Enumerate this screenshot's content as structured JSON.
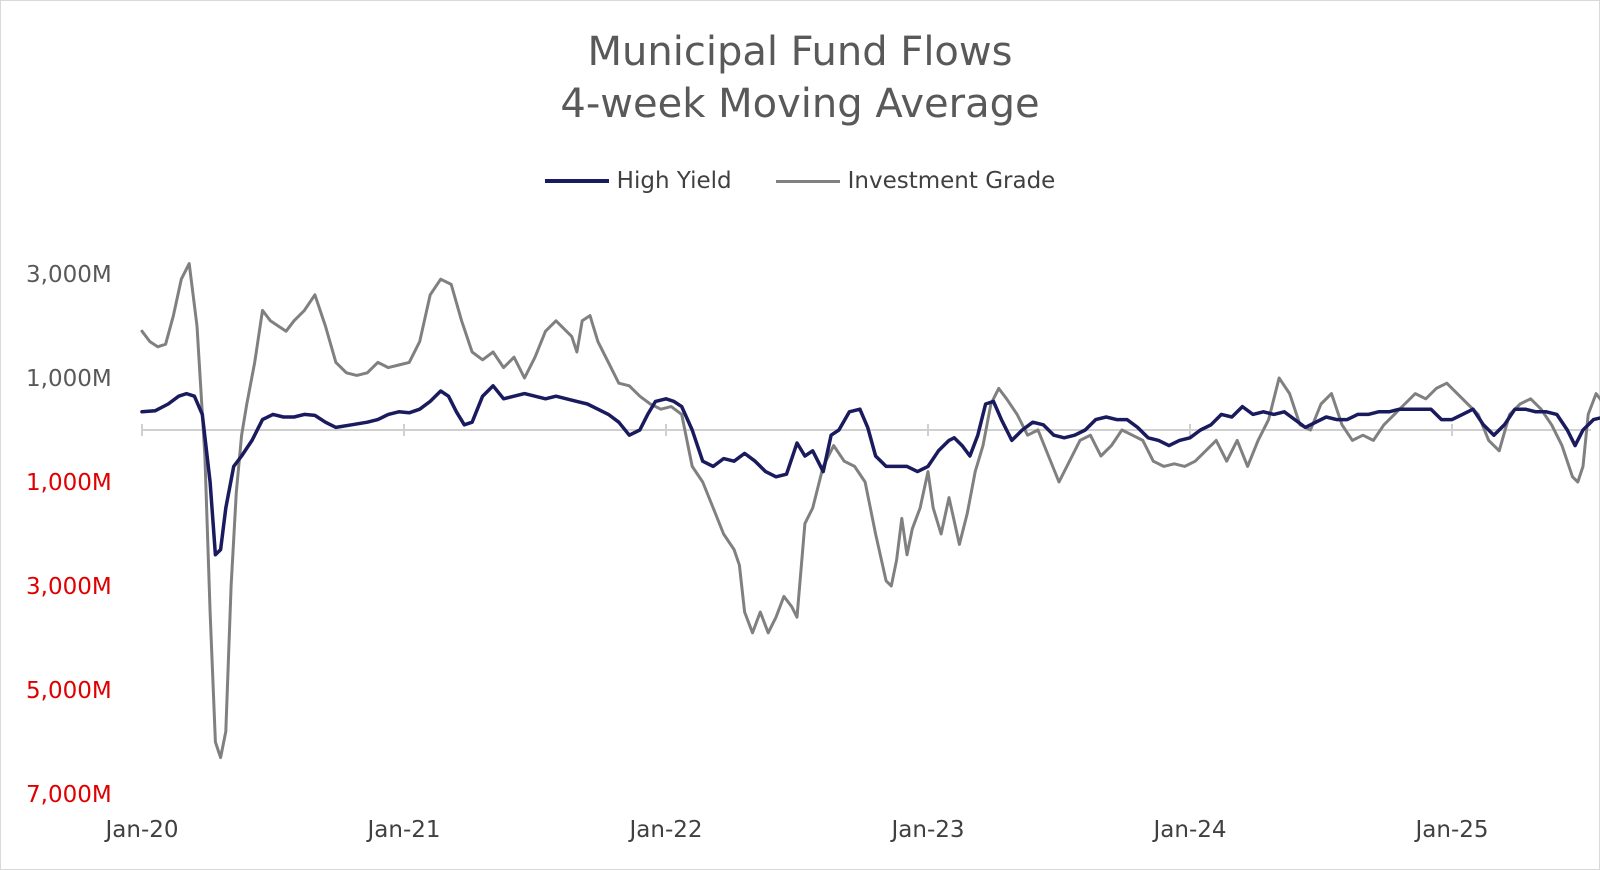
{
  "chart_data": {
    "type": "line",
    "title": "Municipal Fund Flows",
    "subtitle": "4-week Moving Average",
    "xlabel": "",
    "ylabel": "",
    "xlim": [
      0,
      5.5
    ],
    "ylim": [
      -7000,
      3200
    ],
    "grid": false,
    "legend_position": "top-center",
    "x_ticks": [
      "Jan-20",
      "Jan-21",
      "Jan-22",
      "Jan-23",
      "Jan-24",
      "Jan-25"
    ],
    "y_ticks": [
      {
        "value": 3000,
        "label": "3,000M",
        "color": "#595959"
      },
      {
        "value": 1000,
        "label": "1,000M",
        "color": "#595959"
      },
      {
        "value": -1000,
        "label": "1,000M",
        "color": "#e00000"
      },
      {
        "value": -3000,
        "label": "3,000M",
        "color": "#e00000"
      },
      {
        "value": -5000,
        "label": "5,000M",
        "color": "#e00000"
      },
      {
        "value": -7000,
        "label": "7,000M",
        "color": "#e00000"
      }
    ],
    "series": [
      {
        "name": "High Yield",
        "color": "#1a1a5e",
        "points": [
          [
            0.0,
            350
          ],
          [
            0.05,
            370
          ],
          [
            0.1,
            500
          ],
          [
            0.14,
            650
          ],
          [
            0.17,
            700
          ],
          [
            0.2,
            650
          ],
          [
            0.23,
            300
          ],
          [
            0.26,
            -1000
          ],
          [
            0.28,
            -2400
          ],
          [
            0.3,
            -2300
          ],
          [
            0.32,
            -1500
          ],
          [
            0.35,
            -700
          ],
          [
            0.38,
            -500
          ],
          [
            0.42,
            -200
          ],
          [
            0.46,
            200
          ],
          [
            0.5,
            300
          ],
          [
            0.54,
            250
          ],
          [
            0.58,
            250
          ],
          [
            0.62,
            300
          ],
          [
            0.66,
            280
          ],
          [
            0.7,
            150
          ],
          [
            0.74,
            50
          ],
          [
            0.8,
            100
          ],
          [
            0.86,
            150
          ],
          [
            0.9,
            200
          ],
          [
            0.94,
            300
          ],
          [
            0.98,
            350
          ],
          [
            1.02,
            330
          ],
          [
            1.06,
            400
          ],
          [
            1.1,
            550
          ],
          [
            1.14,
            750
          ],
          [
            1.17,
            650
          ],
          [
            1.2,
            350
          ],
          [
            1.23,
            100
          ],
          [
            1.26,
            150
          ],
          [
            1.3,
            650
          ],
          [
            1.34,
            850
          ],
          [
            1.38,
            600
          ],
          [
            1.42,
            650
          ],
          [
            1.46,
            700
          ],
          [
            1.5,
            650
          ],
          [
            1.54,
            600
          ],
          [
            1.58,
            650
          ],
          [
            1.62,
            600
          ],
          [
            1.66,
            550
          ],
          [
            1.7,
            500
          ],
          [
            1.74,
            400
          ],
          [
            1.78,
            300
          ],
          [
            1.82,
            150
          ],
          [
            1.86,
            -100
          ],
          [
            1.9,
            0
          ],
          [
            1.93,
            300
          ],
          [
            1.96,
            550
          ],
          [
            2.0,
            600
          ],
          [
            2.03,
            550
          ],
          [
            2.06,
            450
          ],
          [
            2.1,
            0
          ],
          [
            2.14,
            -600
          ],
          [
            2.18,
            -700
          ],
          [
            2.22,
            -550
          ],
          [
            2.26,
            -600
          ],
          [
            2.3,
            -450
          ],
          [
            2.34,
            -600
          ],
          [
            2.38,
            -800
          ],
          [
            2.42,
            -900
          ],
          [
            2.46,
            -850
          ],
          [
            2.5,
            -250
          ],
          [
            2.53,
            -500
          ],
          [
            2.56,
            -400
          ],
          [
            2.6,
            -800
          ],
          [
            2.63,
            -100
          ],
          [
            2.66,
            0
          ],
          [
            2.7,
            350
          ],
          [
            2.74,
            400
          ],
          [
            2.77,
            50
          ],
          [
            2.8,
            -500
          ],
          [
            2.84,
            -700
          ],
          [
            2.88,
            -700
          ],
          [
            2.92,
            -700
          ],
          [
            2.96,
            -800
          ],
          [
            3.0,
            -700
          ],
          [
            3.04,
            -400
          ],
          [
            3.08,
            -200
          ],
          [
            3.1,
            -150
          ],
          [
            3.13,
            -300
          ],
          [
            3.16,
            -500
          ],
          [
            3.19,
            -100
          ],
          [
            3.22,
            500
          ],
          [
            3.25,
            550
          ],
          [
            3.28,
            200
          ],
          [
            3.32,
            -200
          ],
          [
            3.36,
            0
          ],
          [
            3.4,
            150
          ],
          [
            3.44,
            100
          ],
          [
            3.48,
            -100
          ],
          [
            3.52,
            -150
          ],
          [
            3.56,
            -100
          ],
          [
            3.6,
            0
          ],
          [
            3.64,
            200
          ],
          [
            3.68,
            250
          ],
          [
            3.72,
            200
          ],
          [
            3.76,
            200
          ],
          [
            3.8,
            50
          ],
          [
            3.84,
            -150
          ],
          [
            3.88,
            -200
          ],
          [
            3.92,
            -300
          ],
          [
            3.96,
            -200
          ],
          [
            4.0,
            -150
          ],
          [
            4.04,
            0
          ],
          [
            4.08,
            100
          ],
          [
            4.12,
            300
          ],
          [
            4.16,
            250
          ],
          [
            4.2,
            450
          ],
          [
            4.24,
            300
          ],
          [
            4.28,
            350
          ],
          [
            4.32,
            300
          ],
          [
            4.36,
            350
          ],
          [
            4.4,
            200
          ],
          [
            4.44,
            50
          ],
          [
            4.48,
            150
          ],
          [
            4.52,
            250
          ],
          [
            4.56,
            200
          ],
          [
            4.6,
            200
          ],
          [
            4.64,
            300
          ],
          [
            4.68,
            300
          ],
          [
            4.72,
            350
          ],
          [
            4.76,
            350
          ],
          [
            4.8,
            400
          ],
          [
            4.84,
            400
          ],
          [
            4.88,
            400
          ],
          [
            4.92,
            400
          ],
          [
            4.96,
            200
          ],
          [
            5.0,
            200
          ],
          [
            5.04,
            300
          ],
          [
            5.08,
            400
          ],
          [
            5.12,
            100
          ],
          [
            5.16,
            -100
          ],
          [
            5.2,
            100
          ],
          [
            5.24,
            400
          ],
          [
            5.28,
            400
          ],
          [
            5.32,
            350
          ],
          [
            5.36,
            350
          ],
          [
            5.4,
            300
          ],
          [
            5.44,
            0
          ],
          [
            5.47,
            -300
          ],
          [
            5.5,
            0
          ],
          [
            5.54,
            200
          ],
          [
            5.58,
            250
          ]
        ]
      },
      {
        "name": "Investment Grade",
        "color": "#808080",
        "points": [
          [
            0.0,
            1900
          ],
          [
            0.03,
            1700
          ],
          [
            0.06,
            1600
          ],
          [
            0.09,
            1650
          ],
          [
            0.12,
            2200
          ],
          [
            0.15,
            2900
          ],
          [
            0.18,
            3200
          ],
          [
            0.21,
            2000
          ],
          [
            0.24,
            -500
          ],
          [
            0.26,
            -3500
          ],
          [
            0.28,
            -6000
          ],
          [
            0.3,
            -6300
          ],
          [
            0.32,
            -5800
          ],
          [
            0.34,
            -3000
          ],
          [
            0.36,
            -1200
          ],
          [
            0.38,
            -100
          ],
          [
            0.4,
            500
          ],
          [
            0.43,
            1300
          ],
          [
            0.46,
            2300
          ],
          [
            0.49,
            2100
          ],
          [
            0.52,
            2000
          ],
          [
            0.55,
            1900
          ],
          [
            0.58,
            2100
          ],
          [
            0.62,
            2300
          ],
          [
            0.66,
            2600
          ],
          [
            0.7,
            2000
          ],
          [
            0.74,
            1300
          ],
          [
            0.78,
            1100
          ],
          [
            0.82,
            1050
          ],
          [
            0.86,
            1100
          ],
          [
            0.9,
            1300
          ],
          [
            0.94,
            1200
          ],
          [
            0.98,
            1250
          ],
          [
            1.02,
            1300
          ],
          [
            1.06,
            1700
          ],
          [
            1.1,
            2600
          ],
          [
            1.14,
            2900
          ],
          [
            1.18,
            2800
          ],
          [
            1.22,
            2100
          ],
          [
            1.26,
            1500
          ],
          [
            1.3,
            1350
          ],
          [
            1.34,
            1500
          ],
          [
            1.38,
            1200
          ],
          [
            1.42,
            1400
          ],
          [
            1.46,
            1000
          ],
          [
            1.5,
            1400
          ],
          [
            1.54,
            1900
          ],
          [
            1.58,
            2100
          ],
          [
            1.62,
            1900
          ],
          [
            1.64,
            1800
          ],
          [
            1.66,
            1500
          ],
          [
            1.68,
            2100
          ],
          [
            1.71,
            2200
          ],
          [
            1.74,
            1700
          ],
          [
            1.78,
            1300
          ],
          [
            1.82,
            900
          ],
          [
            1.86,
            850
          ],
          [
            1.9,
            650
          ],
          [
            1.94,
            500
          ],
          [
            1.98,
            400
          ],
          [
            2.02,
            450
          ],
          [
            2.06,
            300
          ],
          [
            2.1,
            -700
          ],
          [
            2.14,
            -1000
          ],
          [
            2.18,
            -1500
          ],
          [
            2.22,
            -2000
          ],
          [
            2.26,
            -2300
          ],
          [
            2.28,
            -2600
          ],
          [
            2.3,
            -3500
          ],
          [
            2.33,
            -3900
          ],
          [
            2.36,
            -3500
          ],
          [
            2.39,
            -3900
          ],
          [
            2.42,
            -3600
          ],
          [
            2.45,
            -3200
          ],
          [
            2.48,
            -3400
          ],
          [
            2.5,
            -3600
          ],
          [
            2.53,
            -1800
          ],
          [
            2.56,
            -1500
          ],
          [
            2.6,
            -700
          ],
          [
            2.64,
            -300
          ],
          [
            2.68,
            -600
          ],
          [
            2.72,
            -700
          ],
          [
            2.76,
            -1000
          ],
          [
            2.8,
            -2000
          ],
          [
            2.84,
            -2900
          ],
          [
            2.86,
            -3000
          ],
          [
            2.88,
            -2500
          ],
          [
            2.9,
            -1700
          ],
          [
            2.92,
            -2400
          ],
          [
            2.94,
            -1900
          ],
          [
            2.97,
            -1500
          ],
          [
            3.0,
            -800
          ],
          [
            3.02,
            -1500
          ],
          [
            3.05,
            -2000
          ],
          [
            3.08,
            -1300
          ],
          [
            3.12,
            -2200
          ],
          [
            3.15,
            -1600
          ],
          [
            3.18,
            -800
          ],
          [
            3.21,
            -300
          ],
          [
            3.24,
            500
          ],
          [
            3.27,
            800
          ],
          [
            3.3,
            600
          ],
          [
            3.34,
            300
          ],
          [
            3.38,
            -100
          ],
          [
            3.42,
            0
          ],
          [
            3.46,
            -500
          ],
          [
            3.5,
            -1000
          ],
          [
            3.54,
            -600
          ],
          [
            3.58,
            -200
          ],
          [
            3.62,
            -100
          ],
          [
            3.66,
            -500
          ],
          [
            3.7,
            -300
          ],
          [
            3.74,
            0
          ],
          [
            3.78,
            -100
          ],
          [
            3.82,
            -200
          ],
          [
            3.86,
            -600
          ],
          [
            3.9,
            -700
          ],
          [
            3.94,
            -650
          ],
          [
            3.98,
            -700
          ],
          [
            4.02,
            -600
          ],
          [
            4.06,
            -400
          ],
          [
            4.1,
            -200
          ],
          [
            4.14,
            -600
          ],
          [
            4.18,
            -200
          ],
          [
            4.22,
            -700
          ],
          [
            4.26,
            -200
          ],
          [
            4.3,
            200
          ],
          [
            4.34,
            1000
          ],
          [
            4.38,
            700
          ],
          [
            4.42,
            100
          ],
          [
            4.46,
            0
          ],
          [
            4.5,
            500
          ],
          [
            4.54,
            700
          ],
          [
            4.58,
            100
          ],
          [
            4.62,
            -200
          ],
          [
            4.66,
            -100
          ],
          [
            4.7,
            -200
          ],
          [
            4.74,
            100
          ],
          [
            4.78,
            300
          ],
          [
            4.82,
            500
          ],
          [
            4.86,
            700
          ],
          [
            4.9,
            600
          ],
          [
            4.94,
            800
          ],
          [
            4.98,
            900
          ],
          [
            5.02,
            700
          ],
          [
            5.06,
            500
          ],
          [
            5.1,
            300
          ],
          [
            5.14,
            -200
          ],
          [
            5.18,
            -400
          ],
          [
            5.22,
            300
          ],
          [
            5.26,
            500
          ],
          [
            5.3,
            600
          ],
          [
            5.34,
            400
          ],
          [
            5.38,
            100
          ],
          [
            5.42,
            -300
          ],
          [
            5.46,
            -900
          ],
          [
            5.48,
            -1000
          ],
          [
            5.5,
            -700
          ],
          [
            5.52,
            300
          ],
          [
            5.55,
            700
          ],
          [
            5.58,
            500
          ]
        ]
      }
    ]
  }
}
